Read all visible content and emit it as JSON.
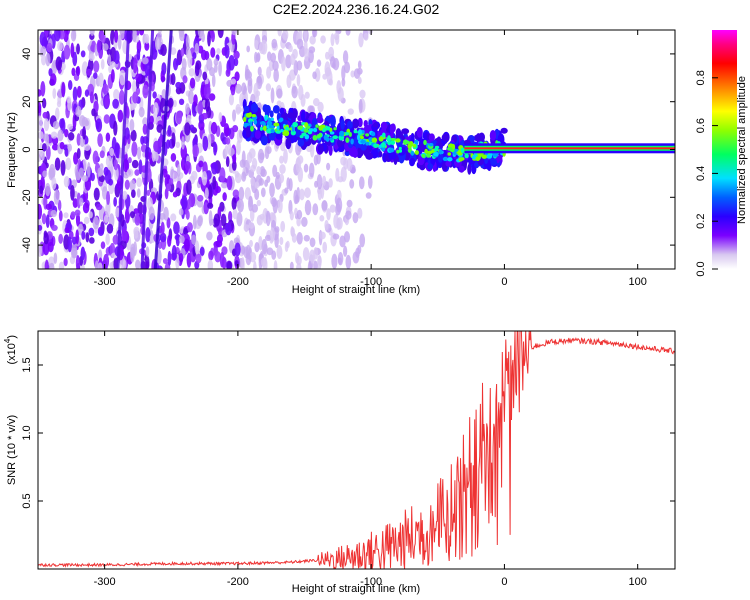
{
  "title": "C2E2.2024.236.16.24.G02",
  "chart_data": [
    {
      "type": "heatmap",
      "panel": "top",
      "xlabel": "Height of straight line (km)",
      "ylabel": "Frequency (Hz)",
      "xlim": [
        -350,
        128
      ],
      "ylim": [
        -50,
        50
      ],
      "xticks": [
        -300,
        -200,
        -100,
        0,
        100
      ],
      "yticks": [
        -40,
        -20,
        0,
        20,
        40
      ],
      "colorbar": {
        "label": "Normalized spectral amplitude",
        "range": [
          0,
          1
        ],
        "ticks": [
          "0.0",
          "0.2",
          "0.4",
          "0.6",
          "0.8"
        ],
        "colors": [
          "#ffffff",
          "#d8c8f0",
          "#7a00ff",
          "#2a00ff",
          "#0060ff",
          "#00e0ff",
          "#00ff60",
          "#90ff00",
          "#ffff00",
          "#ff8000",
          "#ff0000",
          "#ff0080",
          "#ff00ff"
        ]
      },
      "features": {
        "noise_region_km": [
          -350,
          -140
        ],
        "signal_track": [
          {
            "x": -195,
            "y": 12
          },
          {
            "x": -150,
            "y": 8
          },
          {
            "x": -100,
            "y": 4
          },
          {
            "x": -60,
            "y": 0
          },
          {
            "x": -30,
            "y": -2
          },
          {
            "x": 0,
            "y": 1
          }
        ],
        "steady_line_km": [
          0,
          128
        ],
        "steady_line_freq": 0.5
      }
    },
    {
      "type": "line",
      "panel": "bottom",
      "xlabel": "Height of straight line (km)",
      "ylabel": "SNR (10 * v/v)",
      "multiplier_label": "(x10",
      "multiplier_exp": "4",
      "xlim": [
        -350,
        128
      ],
      "ylim": [
        0,
        1.75
      ],
      "xticks": [
        -300,
        -200,
        -100,
        0,
        100
      ],
      "ytick_values": [
        0.5,
        1.0,
        1.5
      ],
      "yticks": [
        "0.5",
        "1.0",
        "1.5"
      ],
      "series": [
        {
          "color": "#ee3333",
          "x": [
            -350,
            -300,
            -250,
            -200,
            -160,
            -120,
            -100,
            -80,
            -60,
            -45,
            -35,
            -25,
            -15,
            -5,
            0,
            10,
            20,
            35,
            50,
            70,
            90,
            110,
            128
          ],
          "y": [
            0.03,
            0.03,
            0.04,
            0.04,
            0.05,
            0.08,
            0.12,
            0.18,
            0.28,
            0.4,
            0.55,
            0.8,
            1.0,
            1.25,
            1.4,
            1.55,
            1.63,
            1.67,
            1.68,
            1.67,
            1.65,
            1.62,
            1.6
          ]
        }
      ]
    }
  ]
}
